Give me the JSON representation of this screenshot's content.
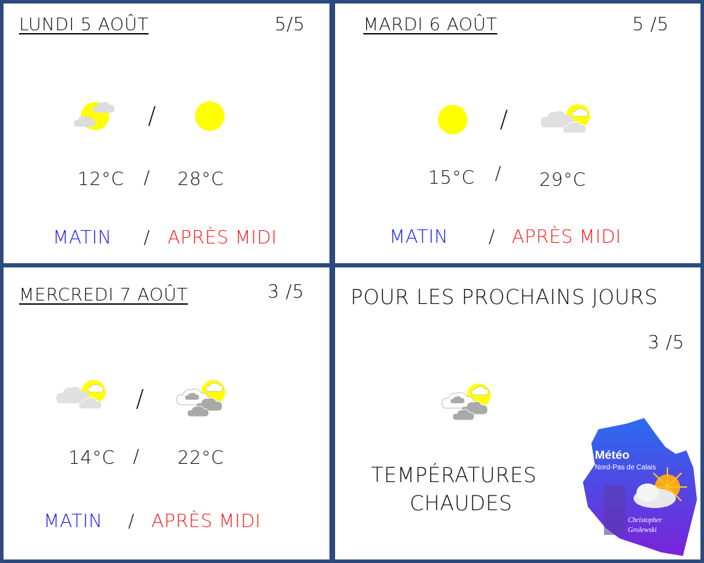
{
  "colors": {
    "border": "#2c4a7e",
    "morning": "#1a1aff",
    "afternoon": "#ff1a1a",
    "sun": "#ffff00"
  },
  "days": [
    {
      "title": "LUNDI 5 AOÛT",
      "rating": "5/5",
      "icon_morning": "sun-small-clouds",
      "icon_afternoon": "sun",
      "temp_morning": "12°C",
      "temp_afternoon": "28°C",
      "sep": "/",
      "morning": "MATIN",
      "afternoon": "APRÈS MIDI"
    },
    {
      "title": "MARDI 6 AOÛT",
      "rating": "5 /5",
      "icon_morning": "sun",
      "icon_afternoon": "cloud-sun",
      "temp_morning": "15°C",
      "temp_afternoon": "29°C",
      "sep": "/",
      "morning": "MATIN",
      "afternoon": "APRÈS MIDI"
    },
    {
      "title": "MERCREDI 7 AOÛT",
      "rating": "3 /5",
      "icon_morning": "cloud-sun",
      "icon_afternoon": "grey-clouds-sun",
      "temp_morning": "14°C",
      "temp_afternoon": "22°C",
      "sep": "/",
      "morning": "MATIN",
      "afternoon": "APRÈS MIDI"
    }
  ],
  "outlook": {
    "title": "POUR LES PROCHAINS JOURS",
    "rating": "3 /5",
    "icon": "grey-clouds-sun",
    "line1": "TEMPÉRATURES",
    "line2": "CHAUDES"
  },
  "logo": {
    "title": "Météo",
    "subtitle": "Nord-Pas de Calais",
    "author1": "Christopher",
    "author2": "Grolewski"
  }
}
